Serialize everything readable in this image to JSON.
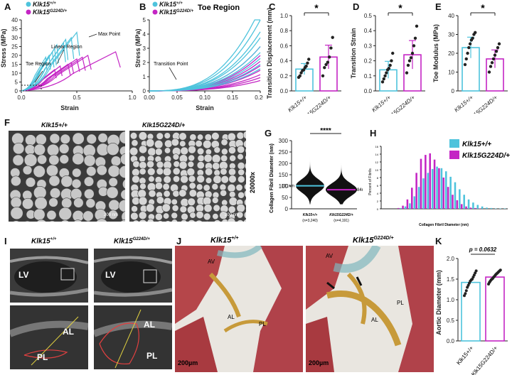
{
  "panel_letters": {
    "a": "A",
    "b": "B",
    "c": "C",
    "d": "D",
    "e": "E",
    "f": "F",
    "g": "G",
    "h": "H",
    "i": "I",
    "j": "J",
    "k": "K"
  },
  "colors": {
    "wt": "#4ec3dc",
    "mut": "#c425c4",
    "dark": "#222222"
  },
  "legend": {
    "wt": "Klk15",
    "wt_sup": "+/+",
    "mut": "Klk15",
    "mut_sup": "G224D/+"
  },
  "panelA": {
    "ylabel": "Stress (MPa)",
    "xlabel": "Strain",
    "yticks": [
      "0",
      "5",
      "10",
      "15",
      "20",
      "25",
      "30",
      "35",
      "40"
    ],
    "xticks": [
      "0.0",
      "0.5",
      "1.0"
    ],
    "annotations": {
      "toe": "Toe Region",
      "linear": "Linear Region",
      "max": "Max Point"
    }
  },
  "panelB": {
    "title": "Toe Region",
    "ylabel": "Stress (MPa)",
    "xlabel": "Strain",
    "yticks": [
      "0",
      "1",
      "2",
      "3",
      "4",
      "5"
    ],
    "xticks": [
      "0.00",
      "0.05",
      "0.10",
      "0.15",
      "0.20"
    ],
    "annotation": "Transition Point"
  },
  "panelC": {
    "ylabel": "Transition Displacement (mm)",
    "yticks": [
      "0.0",
      "0.2",
      "0.4",
      "0.6",
      "0.8",
      "1.0"
    ],
    "sig": "*"
  },
  "panelD": {
    "ylabel": "Transition Strain",
    "yticks": [
      "0.0",
      "0.1",
      "0.2",
      "0.3",
      "0.4",
      "0.5"
    ],
    "sig": "*"
  },
  "panelE": {
    "ylabel": "Toe Modulus (MPa)",
    "yticks": [
      "0",
      "10",
      "20",
      "30",
      "40"
    ],
    "sig": "*"
  },
  "panelF": {
    "wt": "Klk15+/+",
    "mut": "Klk15G224D/+",
    "mag": "20000x",
    "scale": "200 nm"
  },
  "panelG": {
    "ylabel": "Collagen Fibril Diameter (nm)",
    "yticks": [
      "0",
      "50",
      "100",
      "150",
      "200",
      "250",
      "300"
    ],
    "sig": "****",
    "wt_median": "101nm",
    "mut_median": "84nm",
    "wt_n": "(n=3,240)",
    "mut_n": "(n=4,191)"
  },
  "panelH": {
    "ylabel": "Percent of Fibrils",
    "xlabel": "Collagen Fibril Diameter (nm)",
    "yticks": [
      "0",
      "2",
      "4",
      "6",
      "8",
      "10",
      "12",
      "14",
      "16"
    ]
  },
  "panelI": {
    "lv": "LV",
    "al": "AL",
    "pl": "PL"
  },
  "panelJ": {
    "av": "AV",
    "al": "AL",
    "pl": "PL",
    "scale": "200µm"
  },
  "panelK": {
    "ylabel": "Aortic Diameter (mm)",
    "yticks": [
      "0.0",
      "0.5",
      "1.0",
      "1.5",
      "2.0"
    ],
    "p": "p = 0.0632"
  },
  "chart_data": [
    {
      "type": "bar",
      "panel": "C",
      "categories": [
        "Klk15+/+",
        "Klk15G224D/+"
      ],
      "values": [
        0.29,
        0.45
      ],
      "ylim": [
        0,
        1.0
      ],
      "ylabel": "Transition Displacement (mm)",
      "points": [
        [
          0.18,
          0.2,
          0.24,
          0.27,
          0.28,
          0.31,
          0.33,
          0.37,
          0.42
        ],
        [
          0.2,
          0.31,
          0.35,
          0.38,
          0.45,
          0.57,
          0.71
        ]
      ]
    },
    {
      "type": "bar",
      "panel": "D",
      "categories": [
        "Klk15+/+",
        "Klk15G224D/+"
      ],
      "values": [
        0.14,
        0.24
      ],
      "ylim": [
        0,
        0.5
      ],
      "ylabel": "Transition Strain",
      "points": [
        [
          0.06,
          0.08,
          0.1,
          0.12,
          0.14,
          0.15,
          0.17,
          0.2,
          0.25
        ],
        [
          0.12,
          0.17,
          0.2,
          0.22,
          0.25,
          0.3,
          0.35,
          0.43
        ]
      ]
    },
    {
      "type": "bar",
      "panel": "E",
      "categories": [
        "Klk15+/+",
        "Klk15G224D/+"
      ],
      "values": [
        23,
        17
      ],
      "ylim": [
        0,
        40
      ],
      "ylabel": "Toe Modulus (MPa)",
      "points": [
        [
          14,
          17,
          20,
          23,
          25,
          27,
          28,
          30,
          31
        ],
        [
          10,
          13,
          15,
          17,
          19,
          21,
          23,
          25
        ]
      ]
    },
    {
      "type": "bar",
      "panel": "H",
      "xlabel": "Collagen Fibril Diameter (nm)",
      "ylabel": "Percent of Fibrils",
      "ylim": [
        0,
        16
      ],
      "series": [
        {
          "name": "Klk15+/+",
          "values": [
            0,
            0,
            0,
            0,
            0.2,
            0.6,
            1.4,
            3.2,
            5.6,
            7.8,
            9.2,
            10.2,
            10.8,
            10.4,
            9.6,
            8.2,
            6.8,
            5.0,
            3.6,
            2.4,
            1.6,
            1.0,
            0.6,
            0.3,
            0.2,
            0.1,
            0.1,
            0.1
          ]
        },
        {
          "name": "Klk15G224D/+",
          "values": [
            0,
            0,
            0,
            0.2,
            0.8,
            2.4,
            5.4,
            9.2,
            12.8,
            13.8,
            14.2,
            12.6,
            10.4,
            8.0,
            5.6,
            3.6,
            2.2,
            1.2,
            0.6,
            0.3,
            0.2,
            0.1,
            0,
            0,
            0,
            0,
            0,
            0
          ]
        }
      ]
    },
    {
      "type": "scatter",
      "panel": "K",
      "categories": [
        "Klk15+/+",
        "Klk15G224D/+"
      ],
      "values": [
        1.42,
        1.55
      ],
      "ylim": [
        0,
        2.0
      ],
      "ylabel": "Aortic Diameter (mm)",
      "points": [
        [
          1.1,
          1.15,
          1.22,
          1.3,
          1.35,
          1.4,
          1.45,
          1.48,
          1.5,
          1.55,
          1.6,
          1.65,
          1.7
        ],
        [
          1.38,
          1.42,
          1.45,
          1.48,
          1.5,
          1.52,
          1.55,
          1.57,
          1.6,
          1.62,
          1.64,
          1.66,
          1.68,
          1.7,
          1.72
        ]
      ]
    }
  ]
}
